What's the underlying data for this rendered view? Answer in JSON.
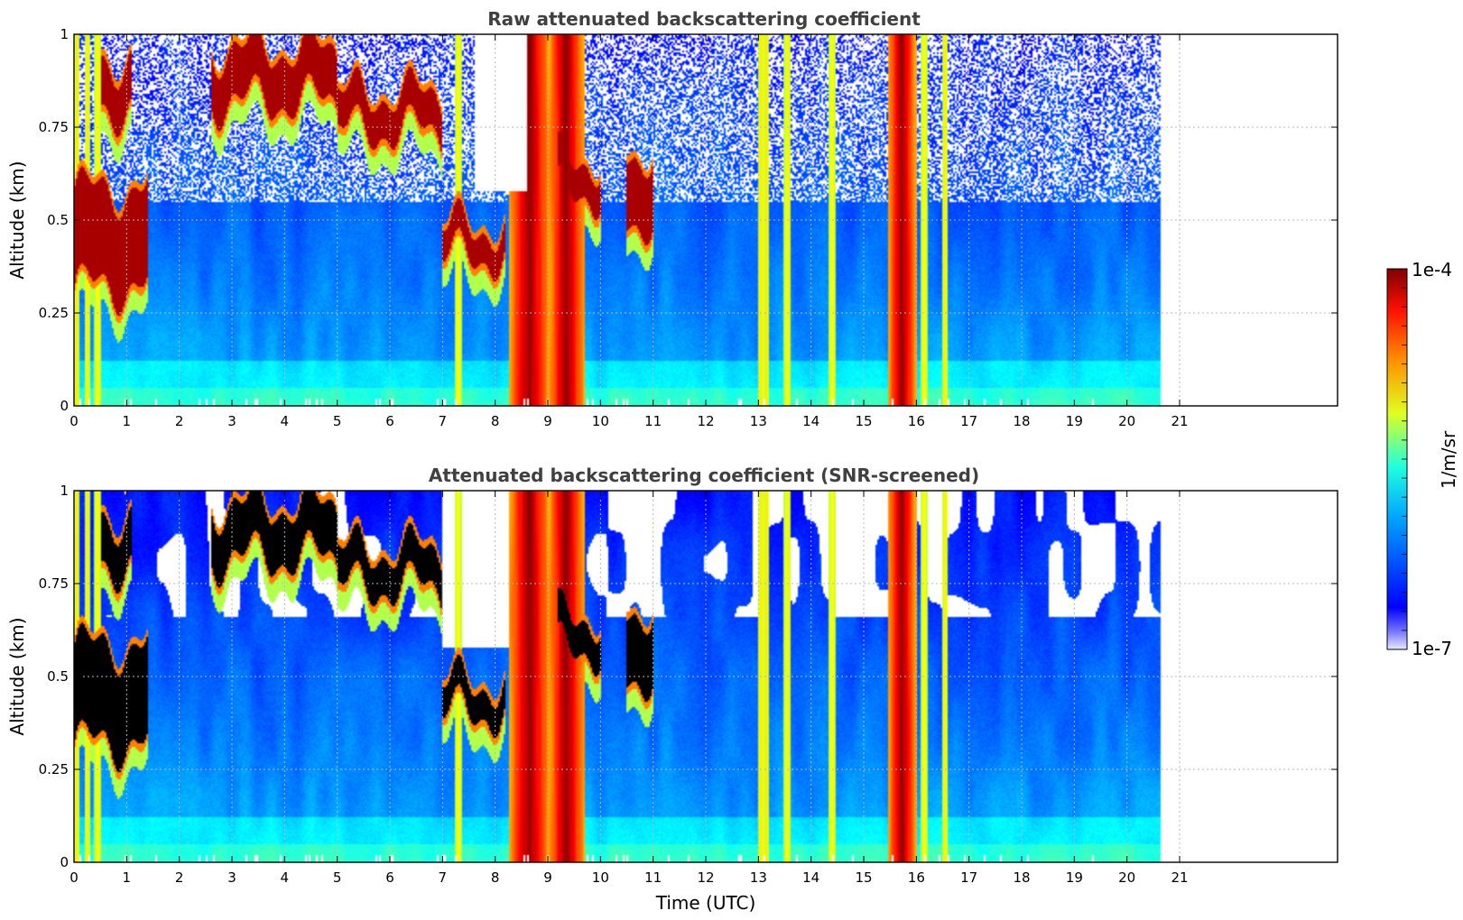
{
  "chart_data": [
    {
      "type": "heatmap",
      "title": "Raw attenuated backscattering coefficient",
      "xlabel": "",
      "ylabel": "Altitude (km)",
      "xlim": [
        0,
        24
      ],
      "ylim": [
        0,
        1
      ],
      "x_ticks": [
        "0",
        "1",
        "2",
        "3",
        "4",
        "5",
        "6",
        "7",
        "8",
        "9",
        "10",
        "11",
        "12",
        "13",
        "14",
        "15",
        "16",
        "17",
        "18",
        "19",
        "20",
        "21"
      ],
      "y_ticks": [
        "0",
        "0.25",
        "0.5",
        "0.75",
        "1"
      ],
      "data_end_time": 20.65,
      "grid": true,
      "screened": false,
      "cloud_layers": [
        {
          "t0": 0.0,
          "t1": 1.4,
          "alt_base": 0.3,
          "alt_top": 0.6
        },
        {
          "t0": 0.5,
          "t1": 1.1,
          "alt_base": 0.78,
          "alt_top": 0.95
        },
        {
          "t0": 2.6,
          "t1": 5.0,
          "alt_base": 0.8,
          "alt_top": 0.98
        },
        {
          "t0": 5.0,
          "t1": 7.0,
          "alt_base": 0.72,
          "alt_top": 0.86
        },
        {
          "t0": 7.0,
          "t1": 8.2,
          "alt_base": 0.38,
          "alt_top": 0.5
        },
        {
          "t0": 9.2,
          "t1": 10.0,
          "alt_base": 0.55,
          "alt_top": 0.68
        },
        {
          "t0": 10.5,
          "t1": 11.0,
          "alt_base": 0.48,
          "alt_top": 0.7
        }
      ],
      "precip_columns": [
        {
          "t0": 8.25,
          "t1": 9.05
        },
        {
          "t0": 9.0,
          "t1": 9.7
        },
        {
          "t0": 15.45,
          "t1": 16.0
        }
      ],
      "streaks": [
        0.05,
        0.25,
        0.45,
        7.3,
        13.05,
        13.15,
        13.55,
        14.4,
        15.95,
        16.15,
        16.55
      ]
    },
    {
      "type": "heatmap",
      "title": "Attenuated backscattering coefficient (SNR-screened)",
      "xlabel": "Time (UTC)",
      "ylabel": "Altitude (km)",
      "xlim": [
        0,
        24
      ],
      "ylim": [
        0,
        1
      ],
      "x_ticks": [
        "0",
        "1",
        "2",
        "3",
        "4",
        "5",
        "6",
        "7",
        "8",
        "9",
        "10",
        "11",
        "12",
        "13",
        "14",
        "15",
        "16",
        "17",
        "18",
        "19",
        "20",
        "21"
      ],
      "y_ticks": [
        "0",
        "0.25",
        "0.5",
        "0.75",
        "1"
      ],
      "data_end_time": 20.65,
      "grid": true,
      "screened": true
    }
  ],
  "colorbar": {
    "label": "1/m/sr",
    "max_label": "1e-4",
    "min_label": "1e-7",
    "log_min": -7,
    "log_max": -4,
    "colormap": "jet"
  }
}
